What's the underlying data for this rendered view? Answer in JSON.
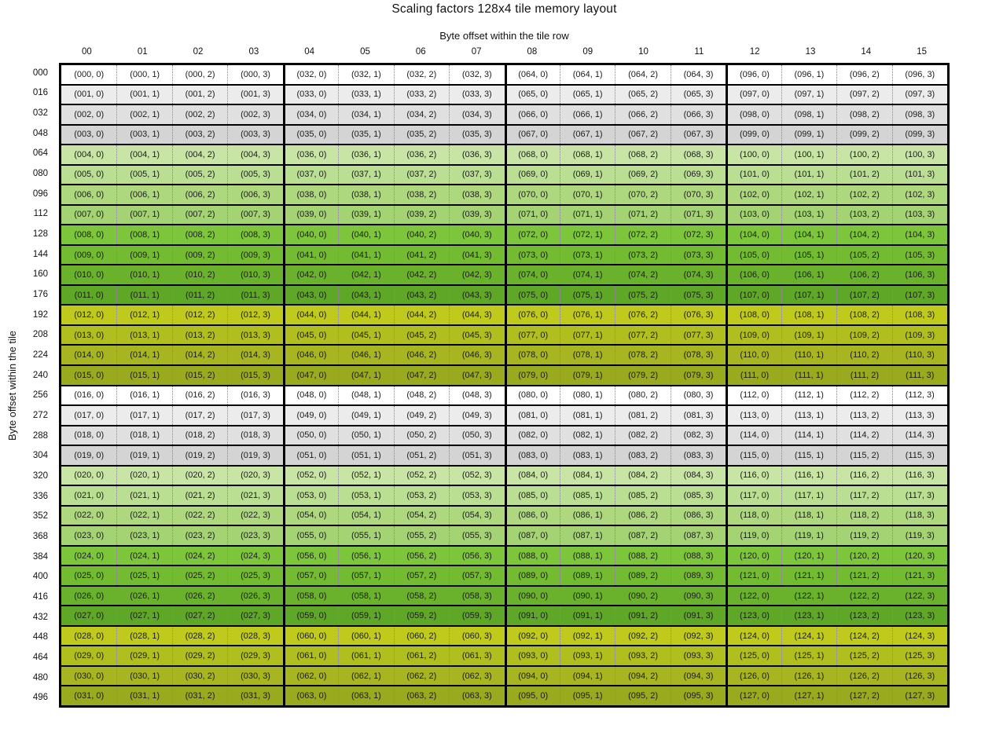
{
  "title": "Scaling factors 128x4 tile memory layout",
  "x_axis": {
    "label": "Byte offset within the tile row",
    "ticks": [
      "00",
      "01",
      "02",
      "03",
      "04",
      "05",
      "06",
      "07",
      "08",
      "09",
      "10",
      "11",
      "12",
      "13",
      "14",
      "15"
    ]
  },
  "y_axis": {
    "label": "Byte offset within the tile",
    "ticks": [
      "000",
      "016",
      "032",
      "048",
      "064",
      "080",
      "096",
      "112",
      "128",
      "144",
      "160",
      "176",
      "192",
      "208",
      "224",
      "240",
      "256",
      "272",
      "288",
      "304",
      "320",
      "336",
      "352",
      "368",
      "384",
      "400",
      "416",
      "432",
      "448",
      "464",
      "480",
      "496"
    ]
  },
  "palette": {
    "row_cycle": [
      "#ffffff",
      "#ececec",
      "#e0e0e0",
      "#d4d4d4",
      "#c9e5a6",
      "#bbdf92",
      "#aed87e",
      "#a4d373",
      "#7dc53b",
      "#73bb31",
      "#6ab22c",
      "#5ea727",
      "#bfca1c",
      "#b0bf1e",
      "#a6b520",
      "#99aa1e"
    ],
    "grid_border": "#000000",
    "row_divider": "#000000",
    "cell_divider": "#8a8a8a",
    "text": "#1b1b1b"
  },
  "grid": {
    "columns": 16,
    "rows": 32,
    "column_group_size": 4,
    "cells": [
      [
        "(000, 0)",
        "(000, 1)",
        "(000, 2)",
        "(000, 3)",
        "(032, 0)",
        "(032, 1)",
        "(032, 2)",
        "(032, 3)",
        "(064, 0)",
        "(064, 1)",
        "(064, 2)",
        "(064, 3)",
        "(096, 0)",
        "(096, 1)",
        "(096, 2)",
        "(096, 3)"
      ],
      [
        "(001, 0)",
        "(001, 1)",
        "(001, 2)",
        "(001, 3)",
        "(033, 0)",
        "(033, 1)",
        "(033, 2)",
        "(033, 3)",
        "(065, 0)",
        "(065, 1)",
        "(065, 2)",
        "(065, 3)",
        "(097, 0)",
        "(097, 1)",
        "(097, 2)",
        "(097, 3)"
      ],
      [
        "(002, 0)",
        "(002, 1)",
        "(002, 2)",
        "(002, 3)",
        "(034, 0)",
        "(034, 1)",
        "(034, 2)",
        "(034, 3)",
        "(066, 0)",
        "(066, 1)",
        "(066, 2)",
        "(066, 3)",
        "(098, 0)",
        "(098, 1)",
        "(098, 2)",
        "(098, 3)"
      ],
      [
        "(003, 0)",
        "(003, 1)",
        "(003, 2)",
        "(003, 3)",
        "(035, 0)",
        "(035, 1)",
        "(035, 2)",
        "(035, 3)",
        "(067, 0)",
        "(067, 1)",
        "(067, 2)",
        "(067, 3)",
        "(099, 0)",
        "(099, 1)",
        "(099, 2)",
        "(099, 3)"
      ],
      [
        "(004, 0)",
        "(004, 1)",
        "(004, 2)",
        "(004, 3)",
        "(036, 0)",
        "(036, 1)",
        "(036, 2)",
        "(036, 3)",
        "(068, 0)",
        "(068, 1)",
        "(068, 2)",
        "(068, 3)",
        "(100, 0)",
        "(100, 1)",
        "(100, 2)",
        "(100, 3)"
      ],
      [
        "(005, 0)",
        "(005, 1)",
        "(005, 2)",
        "(005, 3)",
        "(037, 0)",
        "(037, 1)",
        "(037, 2)",
        "(037, 3)",
        "(069, 0)",
        "(069, 1)",
        "(069, 2)",
        "(069, 3)",
        "(101, 0)",
        "(101, 1)",
        "(101, 2)",
        "(101, 3)"
      ],
      [
        "(006, 0)",
        "(006, 1)",
        "(006, 2)",
        "(006, 3)",
        "(038, 0)",
        "(038, 1)",
        "(038, 2)",
        "(038, 3)",
        "(070, 0)",
        "(070, 1)",
        "(070, 2)",
        "(070, 3)",
        "(102, 0)",
        "(102, 1)",
        "(102, 2)",
        "(102, 3)"
      ],
      [
        "(007, 0)",
        "(007, 1)",
        "(007, 2)",
        "(007, 3)",
        "(039, 0)",
        "(039, 1)",
        "(039, 2)",
        "(039, 3)",
        "(071, 0)",
        "(071, 1)",
        "(071, 2)",
        "(071, 3)",
        "(103, 0)",
        "(103, 1)",
        "(103, 2)",
        "(103, 3)"
      ],
      [
        "(008, 0)",
        "(008, 1)",
        "(008, 2)",
        "(008, 3)",
        "(040, 0)",
        "(040, 1)",
        "(040, 2)",
        "(040, 3)",
        "(072, 0)",
        "(072, 1)",
        "(072, 2)",
        "(072, 3)",
        "(104, 0)",
        "(104, 1)",
        "(104, 2)",
        "(104, 3)"
      ],
      [
        "(009, 0)",
        "(009, 1)",
        "(009, 2)",
        "(009, 3)",
        "(041, 0)",
        "(041, 1)",
        "(041, 2)",
        "(041, 3)",
        "(073, 0)",
        "(073, 1)",
        "(073, 2)",
        "(073, 3)",
        "(105, 0)",
        "(105, 1)",
        "(105, 2)",
        "(105, 3)"
      ],
      [
        "(010, 0)",
        "(010, 1)",
        "(010, 2)",
        "(010, 3)",
        "(042, 0)",
        "(042, 1)",
        "(042, 2)",
        "(042, 3)",
        "(074, 0)",
        "(074, 1)",
        "(074, 2)",
        "(074, 3)",
        "(106, 0)",
        "(106, 1)",
        "(106, 2)",
        "(106, 3)"
      ],
      [
        "(011, 0)",
        "(011, 1)",
        "(011, 2)",
        "(011, 3)",
        "(043, 0)",
        "(043, 1)",
        "(043, 2)",
        "(043, 3)",
        "(075, 0)",
        "(075, 1)",
        "(075, 2)",
        "(075, 3)",
        "(107, 0)",
        "(107, 1)",
        "(107, 2)",
        "(107, 3)"
      ],
      [
        "(012, 0)",
        "(012, 1)",
        "(012, 2)",
        "(012, 3)",
        "(044, 0)",
        "(044, 1)",
        "(044, 2)",
        "(044, 3)",
        "(076, 0)",
        "(076, 1)",
        "(076, 2)",
        "(076, 3)",
        "(108, 0)",
        "(108, 1)",
        "(108, 2)",
        "(108, 3)"
      ],
      [
        "(013, 0)",
        "(013, 1)",
        "(013, 2)",
        "(013, 3)",
        "(045, 0)",
        "(045, 1)",
        "(045, 2)",
        "(045, 3)",
        "(077, 0)",
        "(077, 1)",
        "(077, 2)",
        "(077, 3)",
        "(109, 0)",
        "(109, 1)",
        "(109, 2)",
        "(109, 3)"
      ],
      [
        "(014, 0)",
        "(014, 1)",
        "(014, 2)",
        "(014, 3)",
        "(046, 0)",
        "(046, 1)",
        "(046, 2)",
        "(046, 3)",
        "(078, 0)",
        "(078, 1)",
        "(078, 2)",
        "(078, 3)",
        "(110, 0)",
        "(110, 1)",
        "(110, 2)",
        "(110, 3)"
      ],
      [
        "(015, 0)",
        "(015, 1)",
        "(015, 2)",
        "(015, 3)",
        "(047, 0)",
        "(047, 1)",
        "(047, 2)",
        "(047, 3)",
        "(079, 0)",
        "(079, 1)",
        "(079, 2)",
        "(079, 3)",
        "(111, 0)",
        "(111, 1)",
        "(111, 2)",
        "(111, 3)"
      ],
      [
        "(016, 0)",
        "(016, 1)",
        "(016, 2)",
        "(016, 3)",
        "(048, 0)",
        "(048, 1)",
        "(048, 2)",
        "(048, 3)",
        "(080, 0)",
        "(080, 1)",
        "(080, 2)",
        "(080, 3)",
        "(112, 0)",
        "(112, 1)",
        "(112, 2)",
        "(112, 3)"
      ],
      [
        "(017, 0)",
        "(017, 1)",
        "(017, 2)",
        "(017, 3)",
        "(049, 0)",
        "(049, 1)",
        "(049, 2)",
        "(049, 3)",
        "(081, 0)",
        "(081, 1)",
        "(081, 2)",
        "(081, 3)",
        "(113, 0)",
        "(113, 1)",
        "(113, 2)",
        "(113, 3)"
      ],
      [
        "(018, 0)",
        "(018, 1)",
        "(018, 2)",
        "(018, 3)",
        "(050, 0)",
        "(050, 1)",
        "(050, 2)",
        "(050, 3)",
        "(082, 0)",
        "(082, 1)",
        "(082, 2)",
        "(082, 3)",
        "(114, 0)",
        "(114, 1)",
        "(114, 2)",
        "(114, 3)"
      ],
      [
        "(019, 0)",
        "(019, 1)",
        "(019, 2)",
        "(019, 3)",
        "(051, 0)",
        "(051, 1)",
        "(051, 2)",
        "(051, 3)",
        "(083, 0)",
        "(083, 1)",
        "(083, 2)",
        "(083, 3)",
        "(115, 0)",
        "(115, 1)",
        "(115, 2)",
        "(115, 3)"
      ],
      [
        "(020, 0)",
        "(020, 1)",
        "(020, 2)",
        "(020, 3)",
        "(052, 0)",
        "(052, 1)",
        "(052, 2)",
        "(052, 3)",
        "(084, 0)",
        "(084, 1)",
        "(084, 2)",
        "(084, 3)",
        "(116, 0)",
        "(116, 1)",
        "(116, 2)",
        "(116, 3)"
      ],
      [
        "(021, 0)",
        "(021, 1)",
        "(021, 2)",
        "(021, 3)",
        "(053, 0)",
        "(053, 1)",
        "(053, 2)",
        "(053, 3)",
        "(085, 0)",
        "(085, 1)",
        "(085, 2)",
        "(085, 3)",
        "(117, 0)",
        "(117, 1)",
        "(117, 2)",
        "(117, 3)"
      ],
      [
        "(022, 0)",
        "(022, 1)",
        "(022, 2)",
        "(022, 3)",
        "(054, 0)",
        "(054, 1)",
        "(054, 2)",
        "(054, 3)",
        "(086, 0)",
        "(086, 1)",
        "(086, 2)",
        "(086, 3)",
        "(118, 0)",
        "(118, 1)",
        "(118, 2)",
        "(118, 3)"
      ],
      [
        "(023, 0)",
        "(023, 1)",
        "(023, 2)",
        "(023, 3)",
        "(055, 0)",
        "(055, 1)",
        "(055, 2)",
        "(055, 3)",
        "(087, 0)",
        "(087, 1)",
        "(087, 2)",
        "(087, 3)",
        "(119, 0)",
        "(119, 1)",
        "(119, 2)",
        "(119, 3)"
      ],
      [
        "(024, 0)",
        "(024, 1)",
        "(024, 2)",
        "(024, 3)",
        "(056, 0)",
        "(056, 1)",
        "(056, 2)",
        "(056, 3)",
        "(088, 0)",
        "(088, 1)",
        "(088, 2)",
        "(088, 3)",
        "(120, 0)",
        "(120, 1)",
        "(120, 2)",
        "(120, 3)"
      ],
      [
        "(025, 0)",
        "(025, 1)",
        "(025, 2)",
        "(025, 3)",
        "(057, 0)",
        "(057, 1)",
        "(057, 2)",
        "(057, 3)",
        "(089, 0)",
        "(089, 1)",
        "(089, 2)",
        "(089, 3)",
        "(121, 0)",
        "(121, 1)",
        "(121, 2)",
        "(121, 3)"
      ],
      [
        "(026, 0)",
        "(026, 1)",
        "(026, 2)",
        "(026, 3)",
        "(058, 0)",
        "(058, 1)",
        "(058, 2)",
        "(058, 3)",
        "(090, 0)",
        "(090, 1)",
        "(090, 2)",
        "(090, 3)",
        "(122, 0)",
        "(122, 1)",
        "(122, 2)",
        "(122, 3)"
      ],
      [
        "(027, 0)",
        "(027, 1)",
        "(027, 2)",
        "(027, 3)",
        "(059, 0)",
        "(059, 1)",
        "(059, 2)",
        "(059, 3)",
        "(091, 0)",
        "(091, 1)",
        "(091, 2)",
        "(091, 3)",
        "(123, 0)",
        "(123, 1)",
        "(123, 2)",
        "(123, 3)"
      ],
      [
        "(028, 0)",
        "(028, 1)",
        "(028, 2)",
        "(028, 3)",
        "(060, 0)",
        "(060, 1)",
        "(060, 2)",
        "(060, 3)",
        "(092, 0)",
        "(092, 1)",
        "(092, 2)",
        "(092, 3)",
        "(124, 0)",
        "(124, 1)",
        "(124, 2)",
        "(124, 3)"
      ],
      [
        "(029, 0)",
        "(029, 1)",
        "(029, 2)",
        "(029, 3)",
        "(061, 0)",
        "(061, 1)",
        "(061, 2)",
        "(061, 3)",
        "(093, 0)",
        "(093, 1)",
        "(093, 2)",
        "(093, 3)",
        "(125, 0)",
        "(125, 1)",
        "(125, 2)",
        "(125, 3)"
      ],
      [
        "(030, 0)",
        "(030, 1)",
        "(030, 2)",
        "(030, 3)",
        "(062, 0)",
        "(062, 1)",
        "(062, 2)",
        "(062, 3)",
        "(094, 0)",
        "(094, 1)",
        "(094, 2)",
        "(094, 3)",
        "(126, 0)",
        "(126, 1)",
        "(126, 2)",
        "(126, 3)"
      ],
      [
        "(031, 0)",
        "(031, 1)",
        "(031, 2)",
        "(031, 3)",
        "(063, 0)",
        "(063, 1)",
        "(063, 2)",
        "(063, 3)",
        "(095, 0)",
        "(095, 1)",
        "(095, 2)",
        "(095, 3)",
        "(127, 0)",
        "(127, 1)",
        "(127, 2)",
        "(127, 3)"
      ]
    ]
  }
}
